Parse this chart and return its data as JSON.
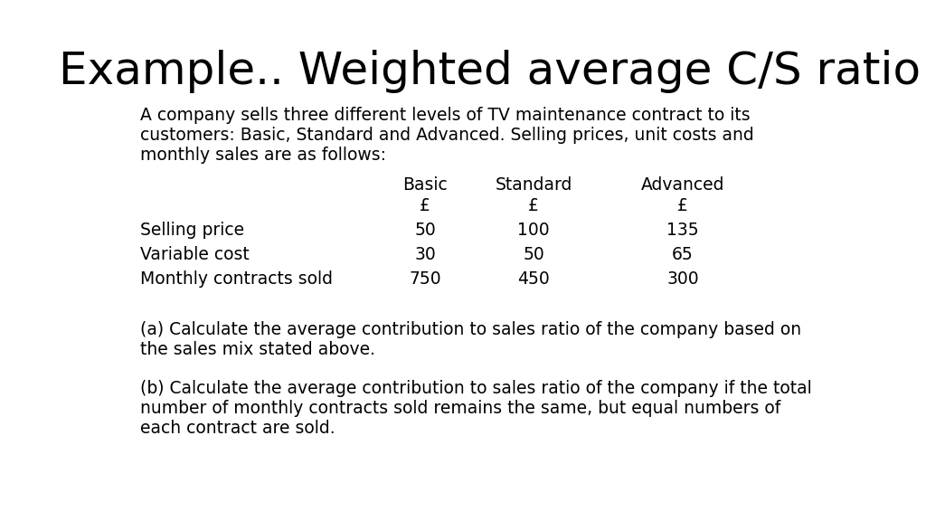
{
  "title": "Example.. Weighted average C/S ratio",
  "subtitle_line1": "A company sells three different levels of TV maintenance contract to its",
  "subtitle_line2": "customers: Basic, Standard and Advanced. Selling prices, unit costs and",
  "subtitle_line3": "monthly sales are as follows:",
  "col_headers": [
    "Basic",
    "Standard",
    "Advanced"
  ],
  "col_currency": [
    "£",
    "£",
    "£"
  ],
  "row_labels": [
    "Selling price",
    "Variable cost",
    "Monthly contracts sold"
  ],
  "table_data": [
    [
      "50",
      "100",
      "135"
    ],
    [
      "30",
      "50",
      "65"
    ],
    [
      "750",
      "450",
      "300"
    ]
  ],
  "question_a_line1": "(a) Calculate the average contribution to sales ratio of the company based on",
  "question_a_line2": "the sales mix stated above.",
  "question_b_line1": "(b) Calculate the average contribution to sales ratio of the company if the total",
  "question_b_line2": "number of monthly contracts sold remains the same, but equal numbers of",
  "question_b_line3": "each contract are sold.",
  "title_fontsize": 36,
  "subtitle_fontsize": 13.5,
  "table_fontsize": 13.5,
  "question_fontsize": 13.5,
  "background_color": "#ffffff",
  "text_color": "#000000"
}
